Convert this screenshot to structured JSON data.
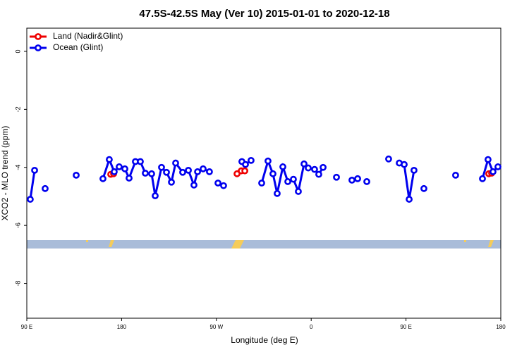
{
  "chart_data": {
    "type": "line",
    "title": "47.5S-42.5S May (Ver 10)   2015-01-01 to 2020-12-18",
    "x_label": "Longitude (deg E)",
    "y_label": "XCO2 - MLO trend (ppm)",
    "xlim": [
      90,
      540
    ],
    "ylim": [
      -9.2,
      0.8
    ],
    "xticks": [
      {
        "value": 90,
        "label": "90 E"
      },
      180,
      {
        "value": 270,
        "label": "90 W"
      },
      {
        "value": 360,
        "label": "0"
      },
      {
        "value": 450,
        "label": "90 E"
      },
      {
        "value": 540,
        "label": "180"
      }
    ],
    "yticks": [
      -8,
      -6,
      -4,
      -2,
      0
    ],
    "legend": "top-left",
    "series": [
      {
        "name": "Land (Nadir&Glint)",
        "color": "#ee0000",
        "x": [
          169.7,
          172.4,
          null,
          289.6,
          293.6,
          297.0,
          null,
          528.6,
          531.3
        ],
        "values": [
          -4.24,
          -4.22,
          null,
          -4.22,
          -4.12,
          -4.12,
          null,
          -4.22,
          -4.2
        ]
      },
      {
        "name": "Ocean (Glint)",
        "color": "#0000ee",
        "x": [
          93.3,
          97.4,
          null,
          107.4,
          null,
          136.9,
          null,
          162.3,
          168.3,
          173.0,
          177.7,
          183.1,
          187.1,
          193.1,
          197.8,
          202.5,
          208.5,
          211.9,
          217.9,
          222.6,
          227.3,
          231.3,
          238.0,
          243.4,
          248.7,
          252.1,
          257.4,
          263.4,
          null,
          271.5,
          276.8,
          null,
          294.2,
          297.6,
          302.9,
          null,
          313.0,
          319.0,
          323.7,
          327.7,
          333.1,
          337.8,
          343.1,
          347.8,
          353.2,
          357.2,
          363.2,
          367.2,
          371.3,
          null,
          384.0,
          null,
          398.7,
          404.1,
          null,
          412.8,
          null,
          433.5,
          null,
          443.6,
          448.3,
          453.0,
          457.6,
          null,
          467.0,
          null,
          497.1,
          null,
          522.6,
          527.9,
          532.6,
          537.3
        ],
        "values": [
          -5.1,
          -4.1,
          null,
          -4.73,
          null,
          -4.27,
          null,
          -4.39,
          -3.73,
          -4.15,
          -3.98,
          -4.05,
          -4.37,
          -3.8,
          -3.8,
          -4.2,
          -4.22,
          -4.98,
          -4.0,
          -4.17,
          -4.51,
          -3.85,
          -4.17,
          -4.1,
          -4.61,
          -4.15,
          -4.05,
          -4.15,
          null,
          -4.54,
          -4.63,
          null,
          -3.8,
          -3.9,
          -3.76,
          null,
          -4.54,
          -3.78,
          -4.22,
          -4.9,
          -3.98,
          -4.49,
          -4.41,
          -4.83,
          -3.88,
          -4.02,
          -4.07,
          -4.24,
          -4.0,
          null,
          -4.34,
          null,
          -4.44,
          -4.39,
          null,
          -4.49,
          null,
          -3.71,
          null,
          -3.85,
          -3.9,
          -5.1,
          -4.1,
          null,
          -4.73,
          null,
          -4.27,
          null,
          -4.39,
          -3.73,
          -4.15,
          -3.98
        ]
      }
    ]
  }
}
